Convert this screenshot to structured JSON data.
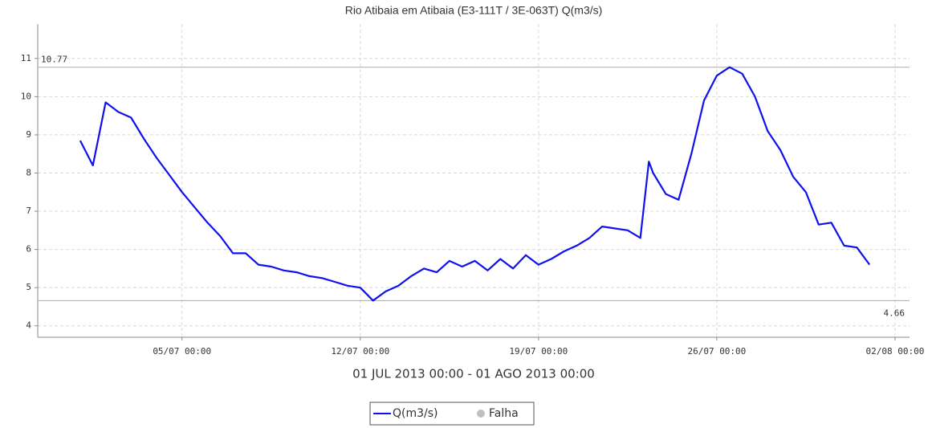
{
  "chart_data": {
    "type": "line",
    "title": "Rio Atibaia em Atibaia (E3-111T / 3E-063T) Q(m3/s)",
    "x_label": "01 JUL 2013 00:00 - 01 AGO 2013 00:00",
    "x": [
      "2013-07-01T00:00",
      "2013-07-01T12:00",
      "2013-07-02T00:00",
      "2013-07-02T12:00",
      "2013-07-03T00:00",
      "2013-07-03T12:00",
      "2013-07-04T00:00",
      "2013-07-04T12:00",
      "2013-07-05T00:00",
      "2013-07-05T12:00",
      "2013-07-06T00:00",
      "2013-07-06T12:00",
      "2013-07-07T00:00",
      "2013-07-07T12:00",
      "2013-07-08T00:00",
      "2013-07-08T12:00",
      "2013-07-09T00:00",
      "2013-07-09T12:00",
      "2013-07-10T00:00",
      "2013-07-10T12:00",
      "2013-07-11T00:00",
      "2013-07-11T12:00",
      "2013-07-12T00:00",
      "2013-07-12T12:00",
      "2013-07-13T00:00",
      "2013-07-13T12:00",
      "2013-07-14T00:00",
      "2013-07-14T12:00",
      "2013-07-15T00:00",
      "2013-07-15T12:00",
      "2013-07-16T00:00",
      "2013-07-16T12:00",
      "2013-07-17T00:00",
      "2013-07-17T12:00",
      "2013-07-18T00:00",
      "2013-07-18T12:00",
      "2013-07-19T00:00",
      "2013-07-19T12:00",
      "2013-07-20T00:00",
      "2013-07-20T12:00",
      "2013-07-21T00:00",
      "2013-07-21T12:00",
      "2013-07-22T00:00",
      "2013-07-22T12:00",
      "2013-07-23T00:00",
      "2013-07-23T08:00",
      "2013-07-23T12:00",
      "2013-07-24T00:00",
      "2013-07-24T12:00",
      "2013-07-25T00:00",
      "2013-07-25T12:00",
      "2013-07-26T00:00",
      "2013-07-26T12:00",
      "2013-07-27T00:00",
      "2013-07-27T12:00",
      "2013-07-28T00:00",
      "2013-07-28T12:00",
      "2013-07-29T00:00",
      "2013-07-29T12:00",
      "2013-07-30T00:00",
      "2013-07-30T12:00",
      "2013-07-31T00:00",
      "2013-07-31T12:00",
      "2013-08-01T00:00"
    ],
    "series": [
      {
        "name": "Q(m3/s)",
        "color": "#1010ee",
        "values": [
          8.85,
          8.2,
          9.85,
          9.6,
          9.45,
          8.9,
          8.4,
          7.95,
          7.5,
          7.1,
          6.7,
          6.35,
          5.9,
          5.9,
          5.6,
          5.55,
          5.45,
          5.4,
          5.3,
          5.25,
          5.15,
          5.05,
          5.0,
          4.66,
          4.9,
          5.05,
          5.3,
          5.5,
          5.4,
          5.7,
          5.55,
          5.7,
          5.45,
          5.75,
          5.5,
          5.85,
          5.6,
          5.75,
          5.95,
          6.1,
          6.3,
          6.6,
          6.55,
          6.5,
          6.3,
          8.3,
          8.0,
          7.45,
          7.3,
          8.5,
          9.9,
          10.55,
          10.77,
          10.6,
          10.0,
          9.1,
          8.6,
          7.9,
          7.5,
          6.65,
          6.7,
          6.1,
          6.05,
          5.6
        ]
      }
    ],
    "legend_extra": {
      "name": "Falha",
      "color": "#c0c0c0"
    },
    "reference_lines": [
      10.77,
      4.66
    ],
    "xlim": [
      "2013-06-29T08:00",
      "2013-08-02T13:40"
    ],
    "xticks": [
      {
        "value": "2013-07-05T00:00",
        "label": "05/07 00:00"
      },
      {
        "value": "2013-07-12T00:00",
        "label": "12/07 00:00"
      },
      {
        "value": "2013-07-19T00:00",
        "label": "19/07 00:00"
      },
      {
        "value": "2013-07-26T00:00",
        "label": "26/07 00:00"
      },
      {
        "value": "2013-08-02T00:00",
        "label": "02/08 00:00"
      }
    ],
    "ylim": [
      3.7,
      11.9
    ],
    "yticks": [
      4,
      5,
      6,
      7,
      8,
      9,
      10,
      11
    ],
    "grid": true
  }
}
